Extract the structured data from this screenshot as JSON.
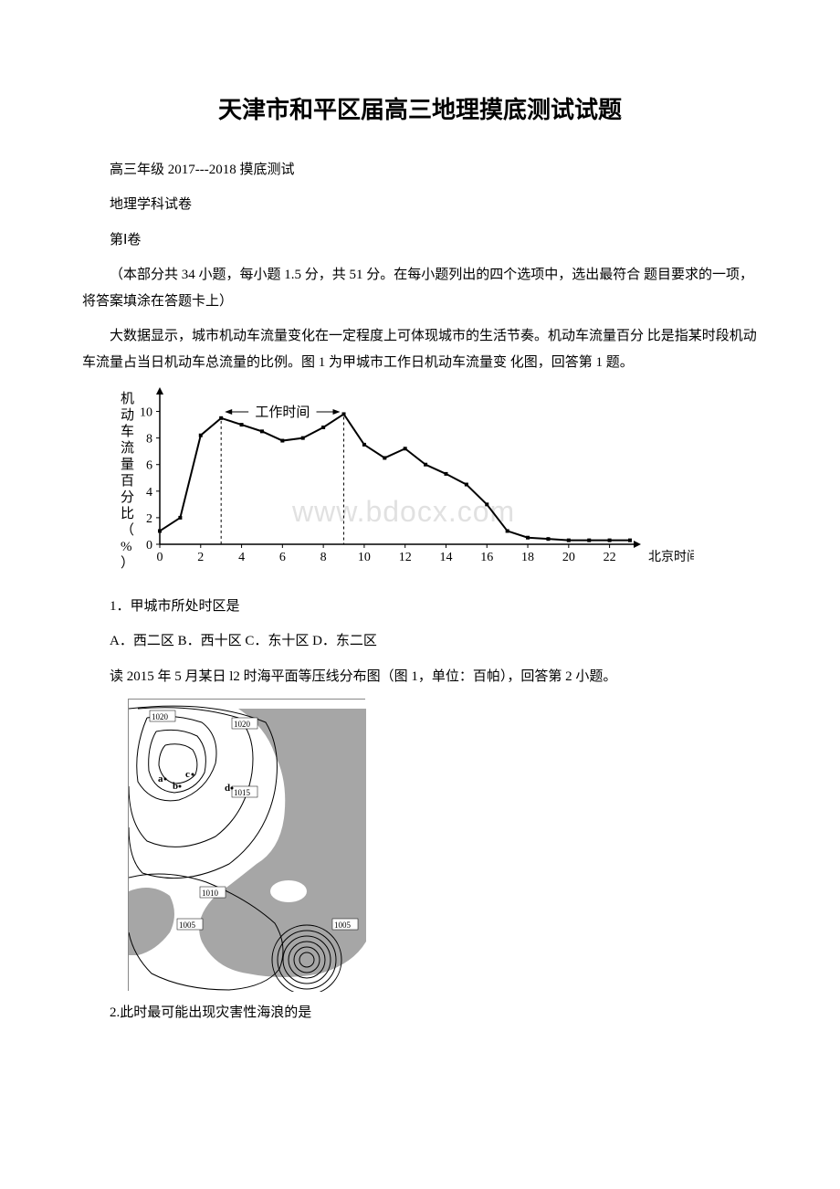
{
  "title": "天津市和平区届高三地理摸底测试试题",
  "header1": "高三年级 2017---2018 摸底测试",
  "header2": "地理学科试卷",
  "header3": "第Ⅰ卷",
  "instructions": "（本部分共 34 小题，每小题 1.5 分，共 51 分。在每小题列出的四个选项中，选出最符合 题目要求的一项，将答案填涂在答题卡上）",
  "context1": "大数据显示，城市机动车流量变化在一定程度上可体现城市的生活节奏。机动车流量百分 比是指某时段机动车流量占当日机动车总流量的比例。图 1 为甲城市工作日机动车流量变 化图，回答第 1 题。",
  "chart1": {
    "type": "line",
    "y_label": "机动车流量百分比（%）",
    "x_label": "北京时间",
    "work_time_label": "工作时间",
    "x_ticks": [
      0,
      2,
      4,
      6,
      8,
      10,
      12,
      14,
      16,
      18,
      20,
      22
    ],
    "y_ticks": [
      0,
      2,
      4,
      6,
      8,
      10
    ],
    "y_max": 11,
    "data_points": [
      {
        "x": 0,
        "y": 1.0
      },
      {
        "x": 1,
        "y": 2.0
      },
      {
        "x": 2,
        "y": 8.2
      },
      {
        "x": 3,
        "y": 9.5
      },
      {
        "x": 4,
        "y": 9.0
      },
      {
        "x": 5,
        "y": 8.5
      },
      {
        "x": 6,
        "y": 7.8
      },
      {
        "x": 7,
        "y": 8.0
      },
      {
        "x": 8,
        "y": 8.8
      },
      {
        "x": 9,
        "y": 9.8
      },
      {
        "x": 10,
        "y": 7.5
      },
      {
        "x": 11,
        "y": 6.5
      },
      {
        "x": 12,
        "y": 7.2
      },
      {
        "x": 13,
        "y": 6.0
      },
      {
        "x": 14,
        "y": 5.3
      },
      {
        "x": 15,
        "y": 4.5
      },
      {
        "x": 16,
        "y": 3.0
      },
      {
        "x": 17,
        "y": 1.0
      },
      {
        "x": 18,
        "y": 0.5
      },
      {
        "x": 19,
        "y": 0.4
      },
      {
        "x": 20,
        "y": 0.3
      },
      {
        "x": 21,
        "y": 0.3
      },
      {
        "x": 22,
        "y": 0.3
      },
      {
        "x": 23,
        "y": 0.3
      }
    ],
    "work_dash_start": 3,
    "work_dash_end": 9,
    "axis_color": "#000000",
    "line_color": "#000000",
    "marker_size": 4,
    "font_size": 14,
    "watermark": "www.bdocx.com"
  },
  "q1_text": "1．甲城市所处时区是",
  "q1_options": "A．西二区 B．西十区 C．东十区 D．东二区",
  "context2": "读 2015 年 5 月某日 l2 时海平面等压线分布图（图 1，单位：百帕），回答第 2 小题。",
  "chart2": {
    "type": "isobar-map",
    "pressure_labels": [
      "1020",
      "1020",
      "1015",
      "1010",
      "1005",
      "1005"
    ],
    "point_labels": [
      "a",
      "b",
      "c",
      "d"
    ],
    "land_color": "#888888",
    "sea_color": "#ffffff",
    "line_color": "#000000"
  },
  "q2_text": "2.此时最可能出现灾害性海浪的是"
}
